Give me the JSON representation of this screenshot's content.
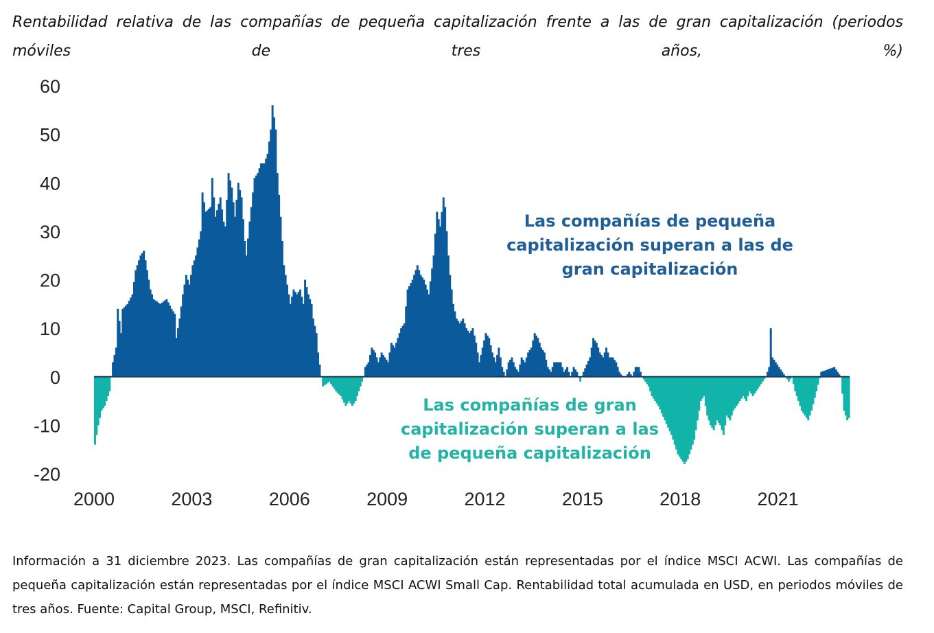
{
  "title": "Rentabilidad relativa de las compañías de pequeña capitalización frente a las de gran capitalización (periodos móviles de tres años, %)",
  "footnote": "Información a 31 diciembre 2023. Las compañías de gran capitalización están representadas por el índice MSCI ACWI. Las compañías de pequeña capitalización están representadas por el índice MSCI ACWI Small Cap. Rentabilidad total acumulada en USD, en periodos móviles de tres años. Fuente: Capital Group, MSCI, Refinitiv.",
  "chart_data": {
    "type": "bar",
    "title": "Rentabilidad relativa de las compañías de pequeña capitalización frente a las de gran capitalización (periodos móviles de tres años, %)",
    "xlabel": "",
    "ylabel": "",
    "xlim": [
      2000,
      2023.2
    ],
    "ylim": [
      -20,
      60
    ],
    "x_ticks": [
      "2000",
      "2003",
      "2006",
      "2009",
      "2012",
      "2015",
      "2018",
      "2021"
    ],
    "y_ticks": [
      "60",
      "50",
      "40",
      "30",
      "20",
      "10",
      "0",
      "-10",
      "-20"
    ],
    "positive_color": "#0a5a9c",
    "negative_color": "#12b3a8",
    "annotations": {
      "positive": [
        "Las compañías de pequeña",
        "capitalización superan a las de",
        "gran capitalización"
      ],
      "negative": [
        "Las compañías de gran",
        "capitalización superan a las",
        "de pequeña capitalización"
      ]
    },
    "series": [
      {
        "name": "Rentabilidad relativa (%)",
        "anchors": [
          [
            2000.0,
            -14
          ],
          [
            2000.1,
            -10
          ],
          [
            2000.2,
            -7
          ],
          [
            2000.3,
            -6
          ],
          [
            2000.45,
            -3
          ],
          [
            2000.5,
            0
          ],
          [
            2000.55,
            3
          ],
          [
            2000.65,
            6
          ],
          [
            2000.7,
            14
          ],
          [
            2000.8,
            9
          ],
          [
            2000.85,
            14
          ],
          [
            2001.0,
            15
          ],
          [
            2001.15,
            17
          ],
          [
            2001.25,
            22
          ],
          [
            2001.4,
            25
          ],
          [
            2001.5,
            26
          ],
          [
            2001.6,
            22
          ],
          [
            2001.7,
            18
          ],
          [
            2001.8,
            16
          ],
          [
            2002.0,
            15
          ],
          [
            2002.2,
            16
          ],
          [
            2002.35,
            14
          ],
          [
            2002.45,
            13
          ],
          [
            2002.5,
            8
          ],
          [
            2002.6,
            12
          ],
          [
            2002.7,
            17
          ],
          [
            2002.8,
            21
          ],
          [
            2002.9,
            19
          ],
          [
            2003.0,
            23
          ],
          [
            2003.1,
            25
          ],
          [
            2003.25,
            30
          ],
          [
            2003.3,
            38
          ],
          [
            2003.4,
            34
          ],
          [
            2003.55,
            35
          ],
          [
            2003.6,
            41
          ],
          [
            2003.7,
            33
          ],
          [
            2003.85,
            37
          ],
          [
            2003.95,
            32
          ],
          [
            2004.0,
            31
          ],
          [
            2004.1,
            42
          ],
          [
            2004.2,
            39
          ],
          [
            2004.3,
            33
          ],
          [
            2004.4,
            40
          ],
          [
            2004.5,
            37
          ],
          [
            2004.6,
            28
          ],
          [
            2004.65,
            25
          ],
          [
            2004.75,
            32
          ],
          [
            2004.9,
            41
          ],
          [
            2005.0,
            42
          ],
          [
            2005.1,
            44
          ],
          [
            2005.2,
            44
          ],
          [
            2005.3,
            46
          ],
          [
            2005.4,
            51
          ],
          [
            2005.45,
            56
          ],
          [
            2005.55,
            51
          ],
          [
            2005.6,
            42
          ],
          [
            2005.7,
            33
          ],
          [
            2005.8,
            23
          ],
          [
            2005.9,
            19
          ],
          [
            2006.0,
            15
          ],
          [
            2006.1,
            18
          ],
          [
            2006.2,
            17
          ],
          [
            2006.3,
            18
          ],
          [
            2006.4,
            15
          ],
          [
            2006.45,
            20
          ],
          [
            2006.55,
            17
          ],
          [
            2006.65,
            15
          ],
          [
            2006.7,
            12
          ],
          [
            2006.8,
            9
          ],
          [
            2006.85,
            5
          ],
          [
            2006.95,
            0
          ],
          [
            2007.0,
            -2
          ],
          [
            2007.2,
            -1
          ],
          [
            2007.4,
            -3
          ],
          [
            2007.55,
            -4
          ],
          [
            2007.7,
            -6
          ],
          [
            2007.8,
            -5
          ],
          [
            2007.9,
            -6
          ],
          [
            2008.0,
            -5
          ],
          [
            2008.1,
            -3
          ],
          [
            2008.2,
            -1
          ],
          [
            2008.25,
            0
          ],
          [
            2008.3,
            2
          ],
          [
            2008.4,
            3
          ],
          [
            2008.5,
            6
          ],
          [
            2008.6,
            5
          ],
          [
            2008.7,
            3
          ],
          [
            2008.8,
            5
          ],
          [
            2009.0,
            3
          ],
          [
            2009.1,
            7
          ],
          [
            2009.2,
            6
          ],
          [
            2009.4,
            10
          ],
          [
            2009.5,
            11
          ],
          [
            2009.6,
            18
          ],
          [
            2009.75,
            20
          ],
          [
            2009.9,
            23
          ],
          [
            2010.0,
            21
          ],
          [
            2010.1,
            20
          ],
          [
            2010.25,
            17
          ],
          [
            2010.4,
            25
          ],
          [
            2010.5,
            34
          ],
          [
            2010.6,
            31
          ],
          [
            2010.7,
            37
          ],
          [
            2010.75,
            35
          ],
          [
            2010.85,
            25
          ],
          [
            2010.9,
            21
          ],
          [
            2011.0,
            15
          ],
          [
            2011.1,
            12
          ],
          [
            2011.2,
            11
          ],
          [
            2011.3,
            12
          ],
          [
            2011.4,
            10
          ],
          [
            2011.5,
            9
          ],
          [
            2011.6,
            10
          ],
          [
            2011.7,
            7
          ],
          [
            2011.8,
            3
          ],
          [
            2011.9,
            6
          ],
          [
            2012.0,
            9
          ],
          [
            2012.1,
            8
          ],
          [
            2012.2,
            5
          ],
          [
            2012.3,
            3
          ],
          [
            2012.4,
            6
          ],
          [
            2012.5,
            2
          ],
          [
            2012.6,
            0
          ],
          [
            2012.7,
            3
          ],
          [
            2012.8,
            4
          ],
          [
            2012.9,
            2
          ],
          [
            2013.0,
            1
          ],
          [
            2013.1,
            4
          ],
          [
            2013.2,
            3
          ],
          [
            2013.3,
            5
          ],
          [
            2013.4,
            6
          ],
          [
            2013.5,
            9
          ],
          [
            2013.6,
            8
          ],
          [
            2013.7,
            6
          ],
          [
            2013.8,
            5
          ],
          [
            2013.9,
            2
          ],
          [
            2014.0,
            1
          ],
          [
            2014.1,
            3
          ],
          [
            2014.3,
            3
          ],
          [
            2014.4,
            1
          ],
          [
            2014.5,
            2
          ],
          [
            2014.6,
            0
          ],
          [
            2014.7,
            2
          ],
          [
            2014.8,
            1
          ],
          [
            2014.9,
            -1
          ],
          [
            2015.0,
            1
          ],
          [
            2015.2,
            4
          ],
          [
            2015.3,
            8
          ],
          [
            2015.4,
            7
          ],
          [
            2015.5,
            5
          ],
          [
            2015.6,
            4
          ],
          [
            2015.7,
            6
          ],
          [
            2015.8,
            4
          ],
          [
            2015.9,
            4
          ],
          [
            2016.0,
            3
          ],
          [
            2016.1,
            1
          ],
          [
            2016.2,
            0
          ],
          [
            2016.3,
            0
          ],
          [
            2016.4,
            1
          ],
          [
            2016.5,
            0
          ],
          [
            2016.6,
            2
          ],
          [
            2016.7,
            2
          ],
          [
            2016.8,
            0
          ],
          [
            2016.9,
            -1
          ],
          [
            2017.0,
            -2
          ],
          [
            2017.1,
            -4
          ],
          [
            2017.3,
            -6
          ],
          [
            2017.5,
            -9
          ],
          [
            2017.7,
            -12
          ],
          [
            2017.8,
            -14
          ],
          [
            2017.9,
            -16
          ],
          [
            2018.0,
            -17
          ],
          [
            2018.1,
            -18
          ],
          [
            2018.2,
            -17
          ],
          [
            2018.3,
            -15
          ],
          [
            2018.4,
            -13
          ],
          [
            2018.5,
            -9
          ],
          [
            2018.6,
            -5
          ],
          [
            2018.7,
            -4
          ],
          [
            2018.8,
            -8
          ],
          [
            2018.9,
            -10
          ],
          [
            2019.0,
            -11
          ],
          [
            2019.1,
            -9
          ],
          [
            2019.2,
            -10
          ],
          [
            2019.3,
            -12
          ],
          [
            2019.4,
            -8
          ],
          [
            2019.5,
            -9
          ],
          [
            2019.6,
            -7
          ],
          [
            2019.7,
            -6
          ],
          [
            2019.8,
            -5
          ],
          [
            2019.9,
            -4
          ],
          [
            2020.0,
            -5
          ],
          [
            2020.1,
            -3
          ],
          [
            2020.2,
            -4
          ],
          [
            2020.3,
            -3
          ],
          [
            2020.4,
            -2
          ],
          [
            2020.5,
            -1
          ],
          [
            2020.6,
            0
          ],
          [
            2020.7,
            2
          ],
          [
            2020.75,
            10
          ],
          [
            2020.8,
            4
          ],
          [
            2020.9,
            3
          ],
          [
            2021.0,
            2
          ],
          [
            2021.1,
            1
          ],
          [
            2021.2,
            0
          ],
          [
            2021.3,
            -1
          ],
          [
            2021.4,
            0
          ],
          [
            2021.5,
            -3
          ],
          [
            2021.6,
            -5
          ],
          [
            2021.7,
            -7
          ],
          [
            2021.8,
            -8
          ],
          [
            2021.9,
            -9
          ],
          [
            2022.0,
            -7
          ],
          [
            2022.3,
            1
          ],
          [
            2022.7,
            2
          ],
          [
            2022.8,
            1
          ],
          [
            2022.9,
            0
          ],
          [
            2023.0,
            -7
          ],
          [
            2023.1,
            -9
          ],
          [
            2023.2,
            -8
          ]
        ]
      }
    ]
  }
}
